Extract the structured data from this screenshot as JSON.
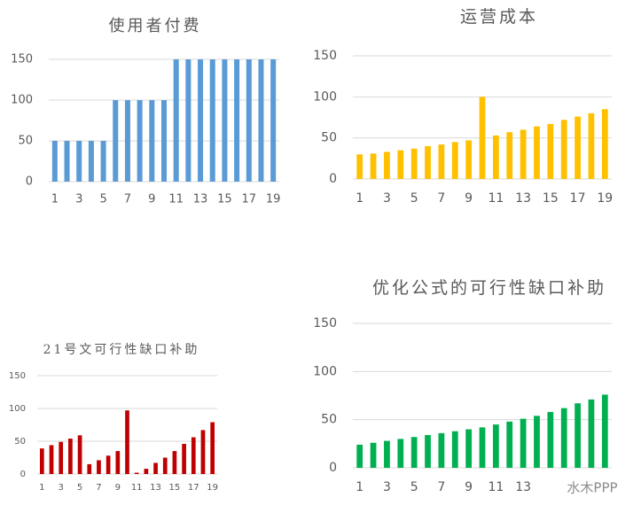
{
  "chart_data": [
    {
      "type": "bar",
      "title": "使用者付费",
      "color": "#5b9bd5",
      "categories": [
        "1",
        null,
        "3",
        null,
        "5",
        null,
        "7",
        null,
        "9",
        null,
        "11",
        null,
        "13",
        null,
        "15",
        null,
        "17",
        null,
        "19"
      ],
      "values": [
        50,
        50,
        50,
        50,
        50,
        100,
        100,
        100,
        100,
        100,
        150,
        150,
        150,
        150,
        150,
        150,
        150,
        150,
        150
      ],
      "ylim": [
        0,
        150
      ],
      "yticks": [
        0,
        50,
        100,
        150
      ],
      "grid": true
    },
    {
      "type": "bar",
      "title": "运营成本",
      "color": "#ffc000",
      "categories": [
        "1",
        null,
        "3",
        null,
        "5",
        null,
        "7",
        null,
        "9",
        null,
        "11",
        null,
        "13",
        null,
        "15",
        null,
        "17",
        null,
        "19"
      ],
      "values": [
        30,
        31,
        33,
        35,
        37,
        40,
        42,
        45,
        47,
        100,
        53,
        57,
        60,
        64,
        67,
        72,
        76,
        80,
        85
      ],
      "ylim": [
        0,
        150
      ],
      "yticks": [
        0,
        50,
        100,
        150
      ],
      "grid": true
    },
    {
      "type": "bar",
      "title": "21号文可行性缺口补助",
      "color": "#c00000",
      "categories": [
        "1",
        null,
        "3",
        null,
        "5",
        null,
        "7",
        null,
        "9",
        null,
        "11",
        null,
        "13",
        null,
        "15",
        null,
        "17",
        null,
        "19"
      ],
      "values": [
        39,
        44,
        49,
        54,
        59,
        15,
        21,
        28,
        35,
        97,
        2,
        8,
        17,
        25,
        35,
        46,
        56,
        67,
        79
      ],
      "ylim": [
        0,
        150
      ],
      "yticks": [
        0,
        50,
        100,
        150
      ],
      "grid": true
    },
    {
      "type": "bar",
      "title": "优化公式的可行性缺口补助",
      "color": "#00b050",
      "categories": [
        "1",
        null,
        "3",
        null,
        "5",
        null,
        "7",
        null,
        "9",
        null,
        "11",
        null,
        "13",
        null,
        null,
        null,
        null,
        null,
        null
      ],
      "values": [
        24,
        26,
        28,
        30,
        32,
        34,
        36,
        38,
        40,
        42,
        45,
        48,
        51,
        54,
        58,
        62,
        67,
        71,
        76
      ],
      "ylim": [
        0,
        150
      ],
      "yticks": [
        0,
        50,
        100,
        150
      ],
      "grid": true
    }
  ],
  "watermark": "水木PPP"
}
